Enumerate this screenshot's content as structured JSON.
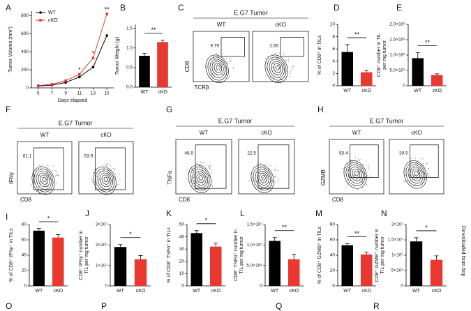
{
  "chart_data": [
    {
      "type": "line",
      "letter": "A",
      "ylabel": "Tumor Volume (mm³)",
      "xlabel": "Days elapsed",
      "x": [
        5,
        7,
        9,
        11,
        13,
        15
      ],
      "xticks": [
        5,
        7,
        9,
        11,
        13,
        15
      ],
      "xlim": [
        4,
        16
      ],
      "ylim": [
        0,
        850
      ],
      "yticks": [
        0,
        200,
        400,
        600,
        800
      ],
      "series": [
        {
          "name": "WT",
          "color": "#000000",
          "values": [
            20,
            30,
            60,
            120,
            230,
            580
          ]
        },
        {
          "name": "cKO",
          "color": "#e8382f",
          "values": [
            25,
            40,
            80,
            150,
            330,
            820
          ]
        }
      ],
      "annotations": [
        {
          "x": 11,
          "label": "*"
        },
        {
          "x": 13,
          "label": "*"
        },
        {
          "x": 15,
          "label": "**"
        }
      ]
    },
    {
      "type": "bar",
      "letter": "B",
      "ylabel": [
        "Tumor Weight (g)"
      ],
      "categories": [
        "WT",
        "cKO"
      ],
      "values": [
        0.8,
        1.15
      ],
      "errors": [
        0.06,
        0.05
      ],
      "colors": [
        "#000000",
        "#e8382f"
      ],
      "ylim": [
        0,
        1.6
      ],
      "yticks": [
        {
          "value": 0,
          "label": "0.0"
        },
        0.5,
        {
          "value": 1,
          "label": "1.0"
        },
        1.5
      ],
      "significance": "**"
    },
    {
      "type": "bar",
      "letter": "D",
      "ylabel": [
        "% of CD8⁺ in TILs"
      ],
      "categories": [
        "WT",
        "cKO"
      ],
      "values": [
        5.5,
        2.2
      ],
      "errors": [
        1.2,
        0.3
      ],
      "colors": [
        "#000000",
        "#e8382f"
      ],
      "ylim": [
        0,
        10
      ],
      "yticks": [
        0,
        2,
        4,
        6,
        8,
        10
      ],
      "significance": "**"
    },
    {
      "type": "bar",
      "letter": "E",
      "ylabel": [
        "CD8⁺ number in TIL",
        "per mg tumor"
      ],
      "categories": [
        "WT",
        "cKO"
      ],
      "values": [
        900000,
        350000
      ],
      "errors": [
        180000,
        40000
      ],
      "colors": [
        "#000000",
        "#e8382f"
      ],
      "ylim": [
        0,
        2000000
      ],
      "yticks": [
        0,
        {
          "value": 500000,
          "label": "5.0×10⁵"
        },
        {
          "value": 1000000,
          "label": "1.0×10⁶"
        },
        {
          "value": 1500000,
          "label": "1.5×10⁶"
        },
        {
          "value": 2000000,
          "label": "2.0×10⁶"
        }
      ],
      "significance": "**"
    },
    {
      "type": "bar",
      "letter": "I",
      "ylabel": [
        "% of CD8⁺ IFNγ⁺ in TILs"
      ],
      "categories": [
        "WT",
        "cKO"
      ],
      "values": [
        72,
        63
      ],
      "errors": [
        3,
        4
      ],
      "colors": [
        "#000000",
        "#e8382f"
      ],
      "ylim": [
        0,
        80
      ],
      "yticks": [
        0,
        20,
        40,
        60,
        80
      ],
      "significance": "*"
    },
    {
      "type": "bar",
      "letter": "J",
      "ylabel": [
        "CD8⁺ IFNγ⁺ number in",
        "TIL per mg tumor"
      ],
      "categories": [
        "WT",
        "cKO"
      ],
      "values": [
        19000000,
        13000000
      ],
      "errors": [
        1200000,
        1800000
      ],
      "colors": [
        "#000000",
        "#e8382f"
      ],
      "ylim": [
        0,
        30000000
      ],
      "yticks": [
        0,
        {
          "value": 10000000,
          "label": "1×10⁷"
        },
        {
          "value": 20000000,
          "label": "2×10⁷"
        },
        {
          "value": 30000000,
          "label": "3×10⁷"
        }
      ],
      "significance": "*"
    },
    {
      "type": "bar",
      "letter": "K",
      "ylabel": [
        "% of CD8⁺ TNFα⁺ in TILs"
      ],
      "categories": [
        "WT",
        "cKO"
      ],
      "values": [
        43,
        32
      ],
      "errors": [
        2,
        3
      ],
      "colors": [
        "#000000",
        "#e8382f"
      ],
      "ylim": [
        0,
        50
      ],
      "yticks": [
        0,
        10,
        20,
        30,
        40,
        50
      ],
      "significance": "*"
    },
    {
      "type": "bar",
      "letter": "L",
      "ylabel": [
        "CD8⁺ TNFα⁺ number in",
        "TIL per mg tumor"
      ],
      "categories": [
        "WT",
        "cKO"
      ],
      "values": [
        11000000,
        6500000
      ],
      "errors": [
        800000,
        1200000
      ],
      "colors": [
        "#000000",
        "#e8382f"
      ],
      "ylim": [
        0,
        15000000
      ],
      "yticks": [
        0,
        {
          "value": 5000000,
          "label": "5.0×10⁶"
        },
        {
          "value": 10000000,
          "label": "1.0×10⁷"
        },
        {
          "value": 15000000,
          "label": "1.5×10⁷"
        }
      ],
      "significance": "**"
    },
    {
      "type": "bar",
      "letter": "M",
      "ylabel": [
        "% of CD8⁺ GZMB⁺ in TILs"
      ],
      "categories": [
        "WT",
        "cKO"
      ],
      "values": [
        53,
        41
      ],
      "errors": [
        2,
        3
      ],
      "colors": [
        "#000000",
        "#e8382f"
      ],
      "ylim": [
        0,
        80
      ],
      "yticks": [
        0,
        20,
        40,
        60,
        80
      ],
      "significance": "**"
    },
    {
      "type": "bar",
      "letter": "N",
      "ylabel": [
        "CD8⁺ GZMB⁺ number in",
        "TIL per mg tumor"
      ],
      "categories": [
        "WT",
        "cKO"
      ],
      "values": [
        14500000,
        8500000
      ],
      "errors": [
        1200000,
        1300000
      ],
      "colors": [
        "#000000",
        "#e8382f"
      ],
      "ylim": [
        0,
        20000000
      ],
      "yticks": [
        0,
        {
          "value": 5000000,
          "label": "5×10⁶"
        },
        {
          "value": 10000000,
          "label": "1×10⁷"
        },
        {
          "value": 15000000,
          "label": "1.5×10⁷"
        },
        {
          "value": 20000000,
          "label": "2×10⁷"
        }
      ],
      "significance": "*"
    }
  ],
  "flow_panels": [
    {
      "letter": "C",
      "title": "E.G7 Tumor",
      "ylabel": "CD8",
      "xlabel": "TCRβ",
      "samples": [
        {
          "name": "WT",
          "gate": 9.79
        },
        {
          "name": "cKO",
          "gate": 2.65
        }
      ]
    },
    {
      "letter": "F",
      "title": "E.G7 Tumor",
      "ylabel": "IFNγ",
      "xlabel": "CD8",
      "samples": [
        {
          "name": "WT",
          "gate": 81.1
        },
        {
          "name": "cKO",
          "gate": 53.9
        }
      ]
    },
    {
      "letter": "G",
      "title": "E.G7 Tumor",
      "ylabel": "TNFα",
      "xlabel": "CD8",
      "samples": [
        {
          "name": "WT",
          "gate": 46.9
        },
        {
          "name": "cKO",
          "gate": 22.5
        }
      ]
    },
    {
      "letter": "H",
      "title": "E.G7 Tumor",
      "ylabel": "GZMB",
      "xlabel": "CD8",
      "samples": [
        {
          "name": "WT",
          "gate": 55.4
        },
        {
          "name": "cKO",
          "gate": 39.9
        }
      ]
    }
  ],
  "cut_off_letters": [
    "O",
    "P",
    "Q",
    "R"
  ],
  "side_note": "Downloaded from http"
}
